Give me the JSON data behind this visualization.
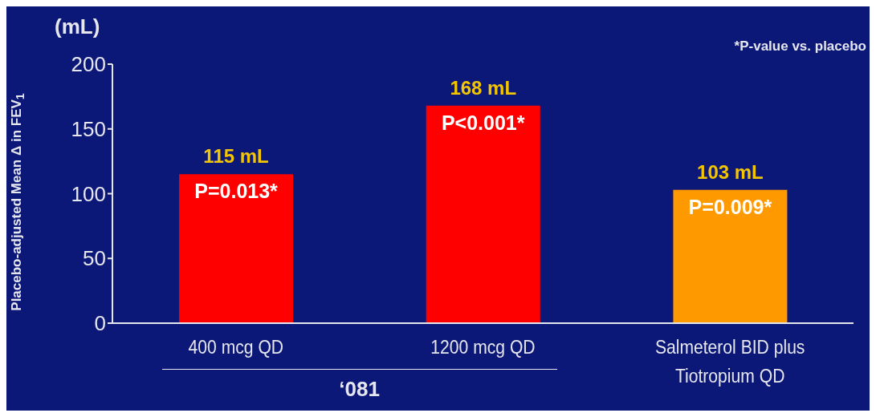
{
  "chart_data": {
    "type": "bar",
    "ylabel": "Placebo-adjusted Mean Δ in FEV$_{1}$",
    "categories": [
      "400 mcg QD",
      "1200 mcg QD",
      "Salmeterol BID plus Tiotropium QD"
    ],
    "values": [
      115,
      168,
      103
    ],
    "colors": [
      "#ff0000",
      "#ff0000",
      "#ff9900"
    ],
    "value_labels": [
      "115 mL",
      "168 mL",
      "103 mL"
    ],
    "ylim": [
      0,
      200
    ],
    "yticks": [
      0,
      50,
      100,
      150,
      200
    ],
    "grid": false,
    "legend": false,
    "annotations": [
      "(mL)",
      "*P-value vs. placebo",
      "‘081",
      {
        "text": "P=0.013*",
        "x": "400 mcg QD",
        "y": 115
      },
      {
        "text": "P<0.001*",
        "x": "1200 mcg QD",
        "y": 168
      },
      {
        "text": "P=0.009*",
        "x": "Salmeterol BID plus Tiotropium QD",
        "y": 103
      }
    ]
  }
}
